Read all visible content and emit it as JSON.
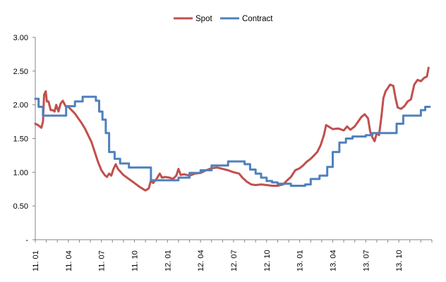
{
  "chart_data": {
    "type": "line",
    "title": "",
    "xlabel": "",
    "ylabel": "",
    "ylim": [
      0,
      3.0
    ],
    "y_ticks": [
      {
        "value": 0,
        "label": "-"
      },
      {
        "value": 0.5,
        "label": "0.50"
      },
      {
        "value": 1.0,
        "label": "1.00"
      },
      {
        "value": 1.5,
        "label": "1.50"
      },
      {
        "value": 2.0,
        "label": "2.00"
      },
      {
        "value": 2.5,
        "label": "2.50"
      },
      {
        "value": 3.0,
        "label": "3.00"
      }
    ],
    "x_ticks": [
      {
        "value": 0,
        "label": "11. 01"
      },
      {
        "value": 3,
        "label": "11. 04"
      },
      {
        "value": 6,
        "label": "11. 07"
      },
      {
        "value": 9,
        "label": "11. 10"
      },
      {
        "value": 12,
        "label": "12. 01"
      },
      {
        "value": 15,
        "label": "12. 04"
      },
      {
        "value": 18,
        "label": "12. 07"
      },
      {
        "value": 21,
        "label": "12. 10"
      },
      {
        "value": 24,
        "label": "13. 01"
      },
      {
        "value": 27,
        "label": "13. 04"
      },
      {
        "value": 30,
        "label": "13. 07"
      },
      {
        "value": 33,
        "label": "13. 10"
      }
    ],
    "x_range": [
      0,
      36
    ],
    "grid": false,
    "legend_position": "top-center",
    "series": [
      {
        "name": "Spot",
        "color": "#c0504d",
        "step": false,
        "points": [
          [
            0,
            1.72
          ],
          [
            0.25,
            1.7
          ],
          [
            0.55,
            1.66
          ],
          [
            0.7,
            1.75
          ],
          [
            0.8,
            2.15
          ],
          [
            0.95,
            2.2
          ],
          [
            1.05,
            2.05
          ],
          [
            1.2,
            2.05
          ],
          [
            1.4,
            1.92
          ],
          [
            1.6,
            1.92
          ],
          [
            1.75,
            1.9
          ],
          [
            1.9,
            2.0
          ],
          [
            2.1,
            1.9
          ],
          [
            2.3,
            2.02
          ],
          [
            2.5,
            2.06
          ],
          [
            2.75,
            1.98
          ],
          [
            3.0,
            1.97
          ],
          [
            3.3,
            1.92
          ],
          [
            3.6,
            1.87
          ],
          [
            3.9,
            1.8
          ],
          [
            4.2,
            1.73
          ],
          [
            4.5,
            1.65
          ],
          [
            4.8,
            1.55
          ],
          [
            5.1,
            1.45
          ],
          [
            5.4,
            1.3
          ],
          [
            5.7,
            1.15
          ],
          [
            6.0,
            1.03
          ],
          [
            6.3,
            0.96
          ],
          [
            6.5,
            0.93
          ],
          [
            6.7,
            0.98
          ],
          [
            6.9,
            0.95
          ],
          [
            7.1,
            1.05
          ],
          [
            7.3,
            1.12
          ],
          [
            7.5,
            1.05
          ],
          [
            8.0,
            0.96
          ],
          [
            8.5,
            0.9
          ],
          [
            9.0,
            0.84
          ],
          [
            9.5,
            0.78
          ],
          [
            10.0,
            0.73
          ],
          [
            10.3,
            0.76
          ],
          [
            10.5,
            0.88
          ],
          [
            10.7,
            0.84
          ],
          [
            11.0,
            0.9
          ],
          [
            11.3,
            0.98
          ],
          [
            11.5,
            0.92
          ],
          [
            11.8,
            0.93
          ],
          [
            12.2,
            0.92
          ],
          [
            12.5,
            0.9
          ],
          [
            12.8,
            0.95
          ],
          [
            13.0,
            1.05
          ],
          [
            13.2,
            0.96
          ],
          [
            13.5,
            0.97
          ],
          [
            14.0,
            0.95
          ],
          [
            14.5,
            0.98
          ],
          [
            15.0,
            0.99
          ],
          [
            15.5,
            1.03
          ],
          [
            16.0,
            1.06
          ],
          [
            16.5,
            1.07
          ],
          [
            17.0,
            1.05
          ],
          [
            17.5,
            1.03
          ],
          [
            18.0,
            1.0
          ],
          [
            18.5,
            0.98
          ],
          [
            18.8,
            0.92
          ],
          [
            19.2,
            0.86
          ],
          [
            19.6,
            0.82
          ],
          [
            20.0,
            0.81
          ],
          [
            20.5,
            0.82
          ],
          [
            21.0,
            0.81
          ],
          [
            21.5,
            0.8
          ],
          [
            22.0,
            0.8
          ],
          [
            22.5,
            0.82
          ],
          [
            22.8,
            0.87
          ],
          [
            23.2,
            0.93
          ],
          [
            23.6,
            1.03
          ],
          [
            24.0,
            1.06
          ],
          [
            24.3,
            1.1
          ],
          [
            24.6,
            1.15
          ],
          [
            25.0,
            1.2
          ],
          [
            25.3,
            1.25
          ],
          [
            25.6,
            1.3
          ],
          [
            25.9,
            1.4
          ],
          [
            26.2,
            1.55
          ],
          [
            26.4,
            1.7
          ],
          [
            26.6,
            1.68
          ],
          [
            27.0,
            1.64
          ],
          [
            27.5,
            1.65
          ],
          [
            28.0,
            1.62
          ],
          [
            28.3,
            1.68
          ],
          [
            28.6,
            1.63
          ],
          [
            29.0,
            1.68
          ],
          [
            29.3,
            1.75
          ],
          [
            29.6,
            1.82
          ],
          [
            29.9,
            1.86
          ],
          [
            30.2,
            1.8
          ],
          [
            30.4,
            1.6
          ],
          [
            30.6,
            1.52
          ],
          [
            30.8,
            1.46
          ],
          [
            31.0,
            1.58
          ],
          [
            31.2,
            1.55
          ],
          [
            31.4,
            1.8
          ],
          [
            31.6,
            2.1
          ],
          [
            31.8,
            2.2
          ],
          [
            32.0,
            2.25
          ],
          [
            32.2,
            2.3
          ],
          [
            32.5,
            2.28
          ],
          [
            32.7,
            2.1
          ],
          [
            32.9,
            1.96
          ],
          [
            33.2,
            1.94
          ],
          [
            33.5,
            1.98
          ],
          [
            33.8,
            2.05
          ],
          [
            34.1,
            2.08
          ],
          [
            34.4,
            2.3
          ],
          [
            34.7,
            2.37
          ],
          [
            35.0,
            2.35
          ],
          [
            35.3,
            2.4
          ],
          [
            35.55,
            2.42
          ],
          [
            35.7,
            2.55
          ]
        ]
      },
      {
        "name": "Contract",
        "color": "#4f81bd",
        "step": true,
        "points": [
          [
            0,
            2.09
          ],
          [
            0.3,
            1.97
          ],
          [
            0.7,
            1.84
          ],
          [
            1.8,
            1.84
          ],
          [
            2.8,
            1.98
          ],
          [
            3.6,
            2.05
          ],
          [
            4.3,
            2.12
          ],
          [
            5.5,
            2.06
          ],
          [
            5.8,
            1.9
          ],
          [
            6.1,
            1.78
          ],
          [
            6.4,
            1.58
          ],
          [
            6.7,
            1.3
          ],
          [
            7.2,
            1.2
          ],
          [
            7.7,
            1.13
          ],
          [
            8.5,
            1.07
          ],
          [
            10.5,
            0.88
          ],
          [
            13.0,
            0.92
          ],
          [
            14.0,
            0.99
          ],
          [
            15.0,
            1.03
          ],
          [
            16.0,
            1.1
          ],
          [
            17.5,
            1.16
          ],
          [
            19.0,
            1.12
          ],
          [
            19.5,
            1.04
          ],
          [
            20.0,
            0.98
          ],
          [
            20.5,
            0.92
          ],
          [
            21.0,
            0.87
          ],
          [
            21.5,
            0.85
          ],
          [
            22.0,
            0.83
          ],
          [
            23.2,
            0.8
          ],
          [
            24.5,
            0.82
          ],
          [
            25.0,
            0.9
          ],
          [
            25.8,
            0.95
          ],
          [
            26.5,
            1.08
          ],
          [
            27.0,
            1.3
          ],
          [
            27.6,
            1.44
          ],
          [
            28.2,
            1.5
          ],
          [
            28.8,
            1.53
          ],
          [
            30.0,
            1.55
          ],
          [
            30.6,
            1.58
          ],
          [
            32.8,
            1.72
          ],
          [
            33.4,
            1.84
          ],
          [
            35.0,
            1.92
          ],
          [
            35.4,
            1.97
          ],
          [
            35.8,
            1.97
          ]
        ]
      }
    ]
  }
}
